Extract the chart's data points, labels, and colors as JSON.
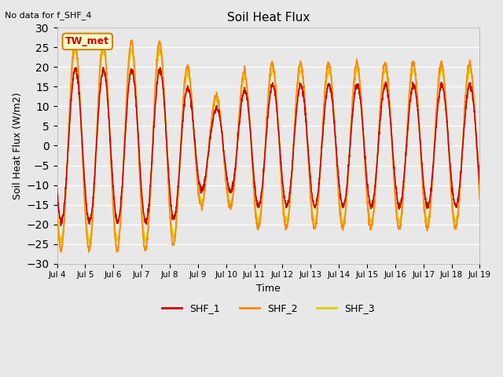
{
  "title": "Soil Heat Flux",
  "xlabel": "Time",
  "ylabel": "Soil Heat Flux (W/m2)",
  "note": "No data for f_SHF_4",
  "annotation": "TW_met",
  "ylim": [
    -30,
    30
  ],
  "yticks": [
    -30,
    -25,
    -20,
    -15,
    -10,
    -5,
    0,
    5,
    10,
    15,
    20,
    25,
    30
  ],
  "x_tick_labels": [
    "Jul 4",
    "Jul 5",
    "Jul 6",
    "Jul 7",
    "Jul 8",
    "Jul 9",
    "Jul 10",
    "Jul 11",
    "Jul 12",
    "Jul 13",
    "Jul 14",
    "Jul 15",
    "Jul 16",
    "Jul 17",
    "Jul 18",
    "Jul 19"
  ],
  "legend_labels": [
    "SHF_1",
    "SHF_2",
    "SHF_3"
  ],
  "colors": {
    "SHF_1": "#cc0000",
    "SHF_2": "#ff8800",
    "SHF_3": "#ddcc00"
  },
  "bg_color": "#e8e8e8",
  "plot_bg_color": "#e8e8e8",
  "n_days": 15,
  "points_per_day": 144
}
